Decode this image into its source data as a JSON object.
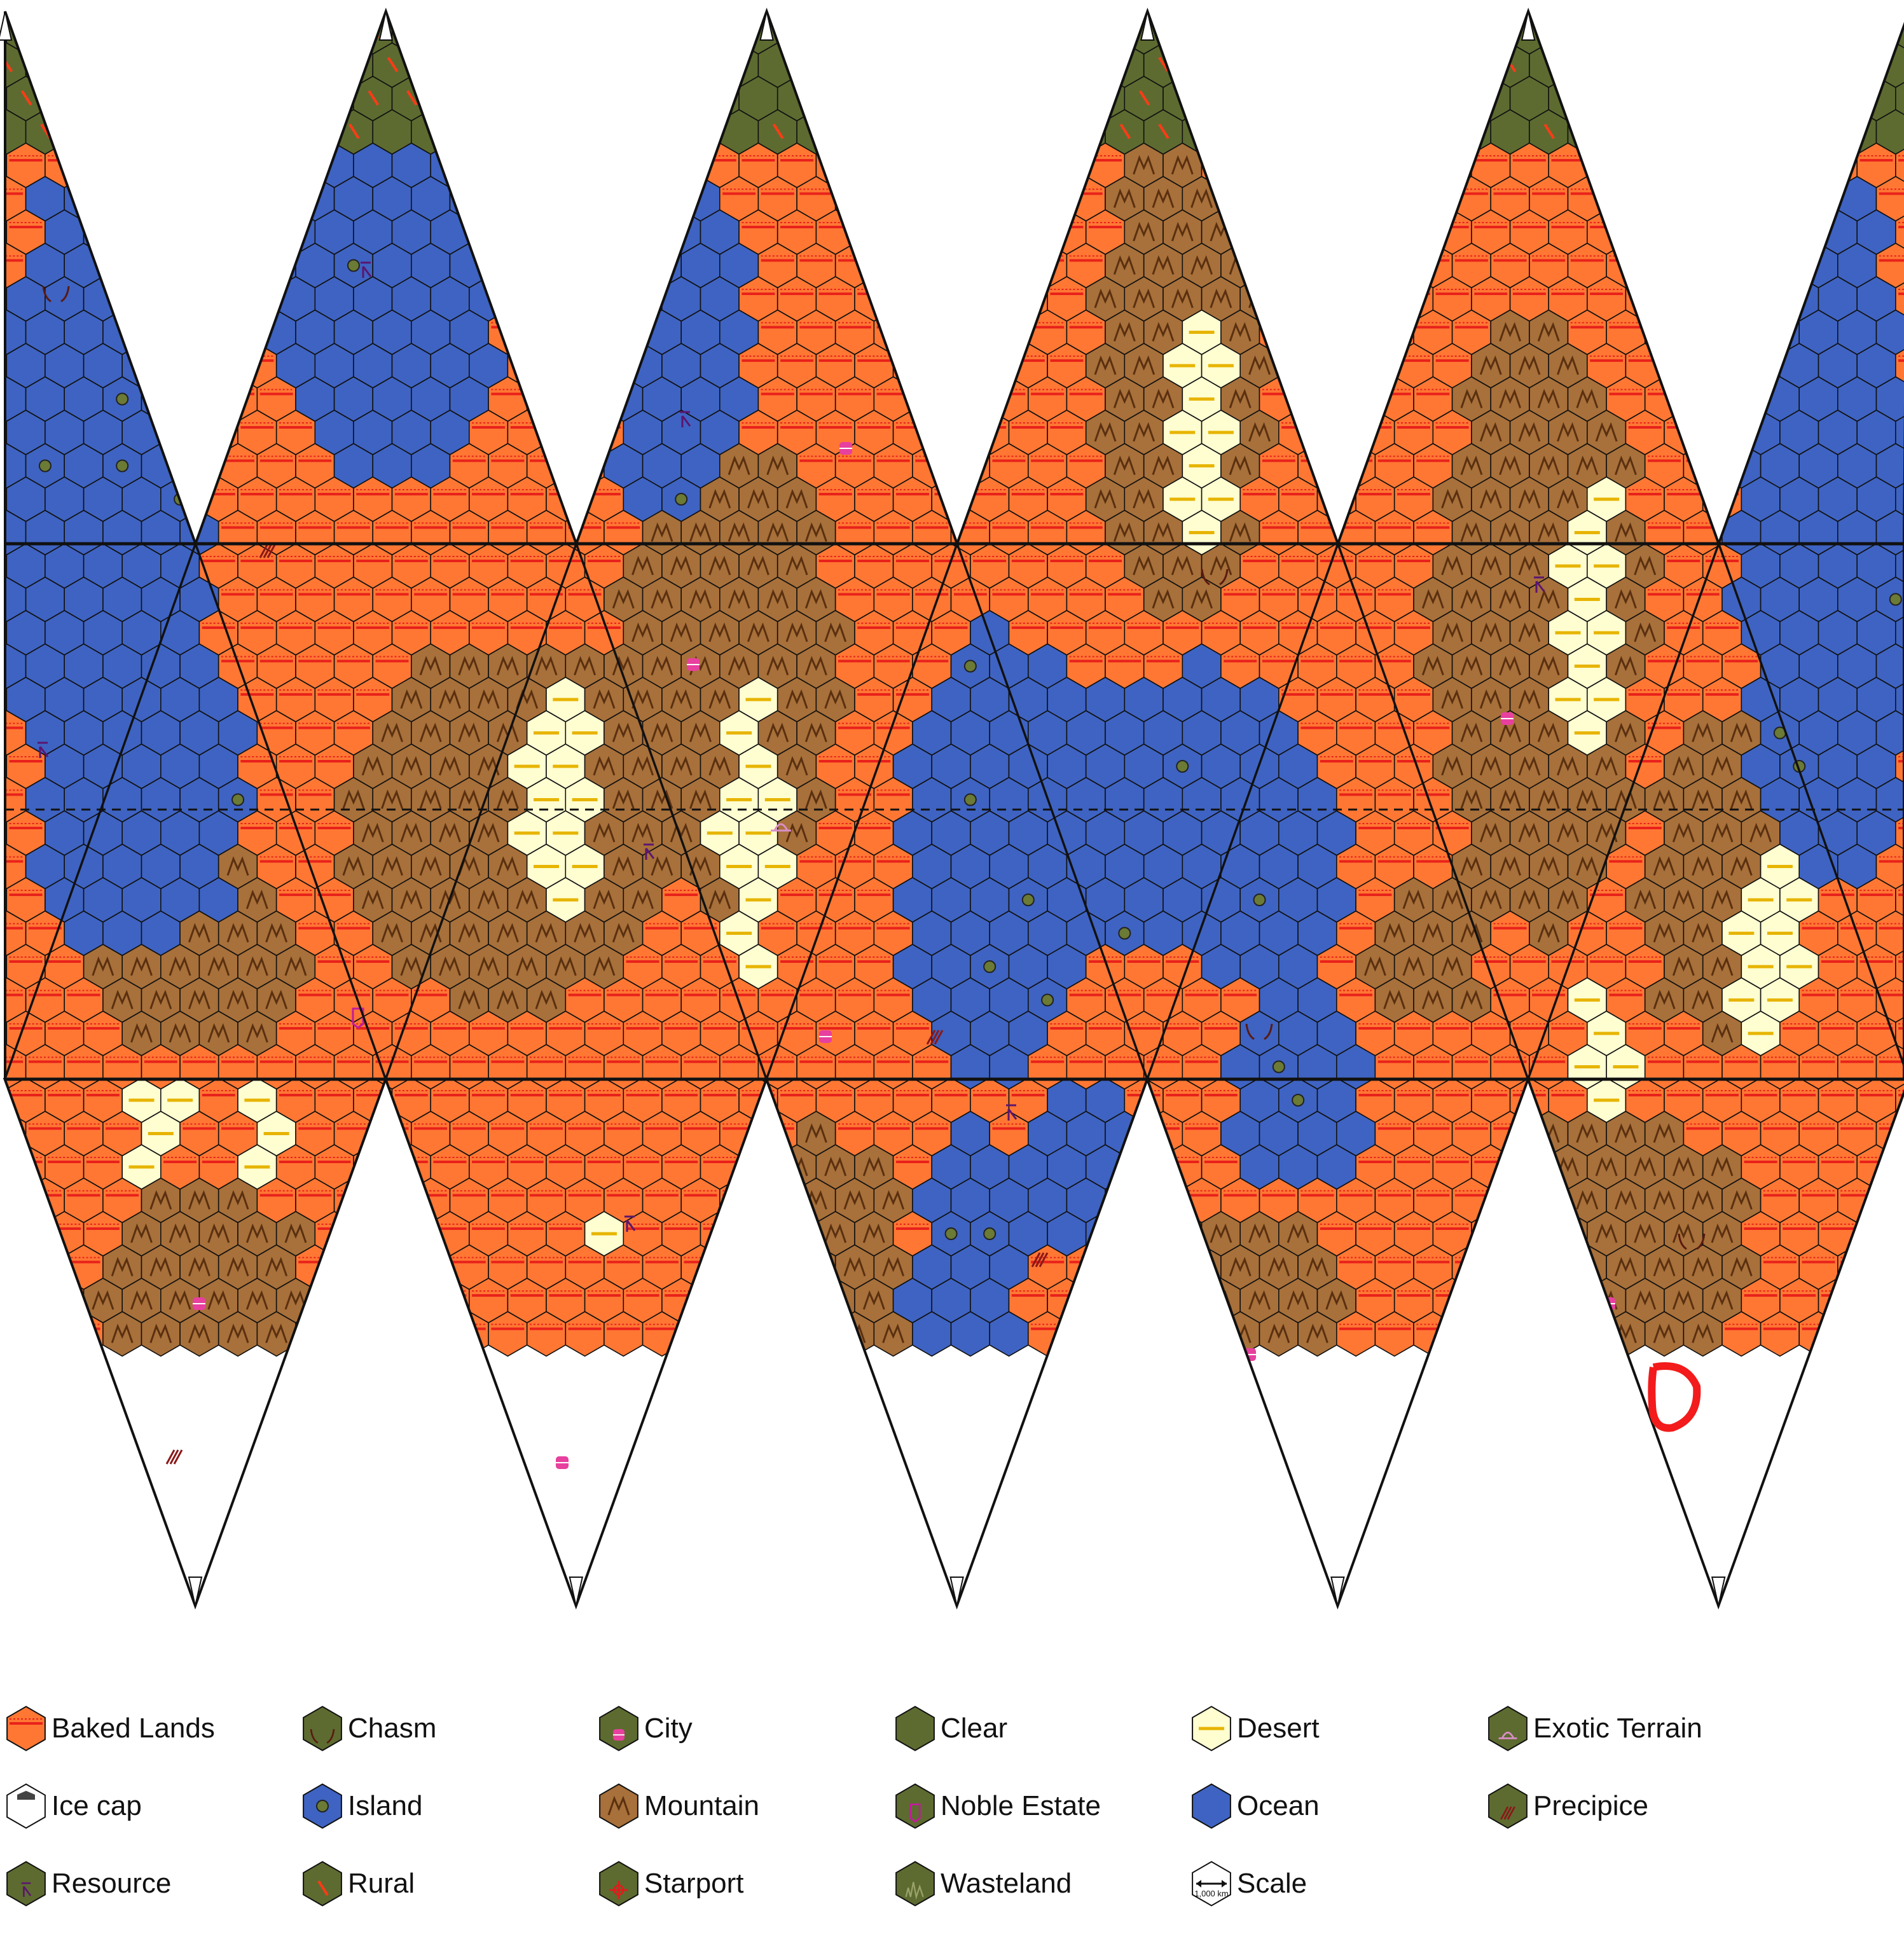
{
  "map": {
    "grid": {
      "hex_rows": 40,
      "hex_cols_per_row": 101
    },
    "terrain_colors": {
      "baked": "#ff7733",
      "mountain": "#a8703a",
      "ocean": "#3e63c2",
      "desert": "#fffed1",
      "clear": "#5d6b30",
      "ice": "#ffffff"
    },
    "accent_colors": {
      "baked_stripe": "#e8211b",
      "desert_stripe": "#e7b400",
      "mountain_stroke": "#5a3010",
      "city": "#e7409e",
      "resource": "#5a1670",
      "rural": "#ff3b16",
      "island_dot": "#6b7a35",
      "chasm": "#5b1a10",
      "precipice": "#8a1818",
      "exotic": "#d98ec7",
      "noble": "#c21b9c",
      "starport": "#e11b1b",
      "wasteland": "#9aa36b",
      "highlight": "#f31b1b"
    }
  },
  "legend": {
    "items": [
      {
        "label": "Baked Lands",
        "icon": "baked-lands-icon",
        "type": "baked"
      },
      {
        "label": "Chasm",
        "icon": "chasm-icon",
        "type": "chasm"
      },
      {
        "label": "City",
        "icon": "city-icon",
        "type": "city"
      },
      {
        "label": "Clear",
        "icon": "clear-icon",
        "type": "clear"
      },
      {
        "label": "Desert",
        "icon": "desert-icon",
        "type": "desert"
      },
      {
        "label": "Exotic Terrain",
        "icon": "exotic-terrain-icon",
        "type": "exotic"
      },
      {
        "label": "Ice cap",
        "icon": "ice-cap-icon",
        "type": "ice"
      },
      {
        "label": "Island",
        "icon": "island-icon",
        "type": "island"
      },
      {
        "label": "Mountain",
        "icon": "mountain-icon",
        "type": "mountain"
      },
      {
        "label": "Noble Estate",
        "icon": "noble-estate-icon",
        "type": "noble"
      },
      {
        "label": "Ocean",
        "icon": "ocean-icon",
        "type": "ocean"
      },
      {
        "label": "Precipice",
        "icon": "precipice-icon",
        "type": "precipice"
      },
      {
        "label": "Resource",
        "icon": "resource-icon",
        "type": "resource"
      },
      {
        "label": "Rural",
        "icon": "rural-icon",
        "type": "rural"
      },
      {
        "label": "Starport",
        "icon": "starport-icon",
        "type": "starport"
      },
      {
        "label": "Wasteland",
        "icon": "wasteland-icon",
        "type": "wasteland"
      },
      {
        "label": "Scale",
        "icon": "scale-icon",
        "type": "scale"
      }
    ],
    "scale_caption": "1,000 km"
  }
}
